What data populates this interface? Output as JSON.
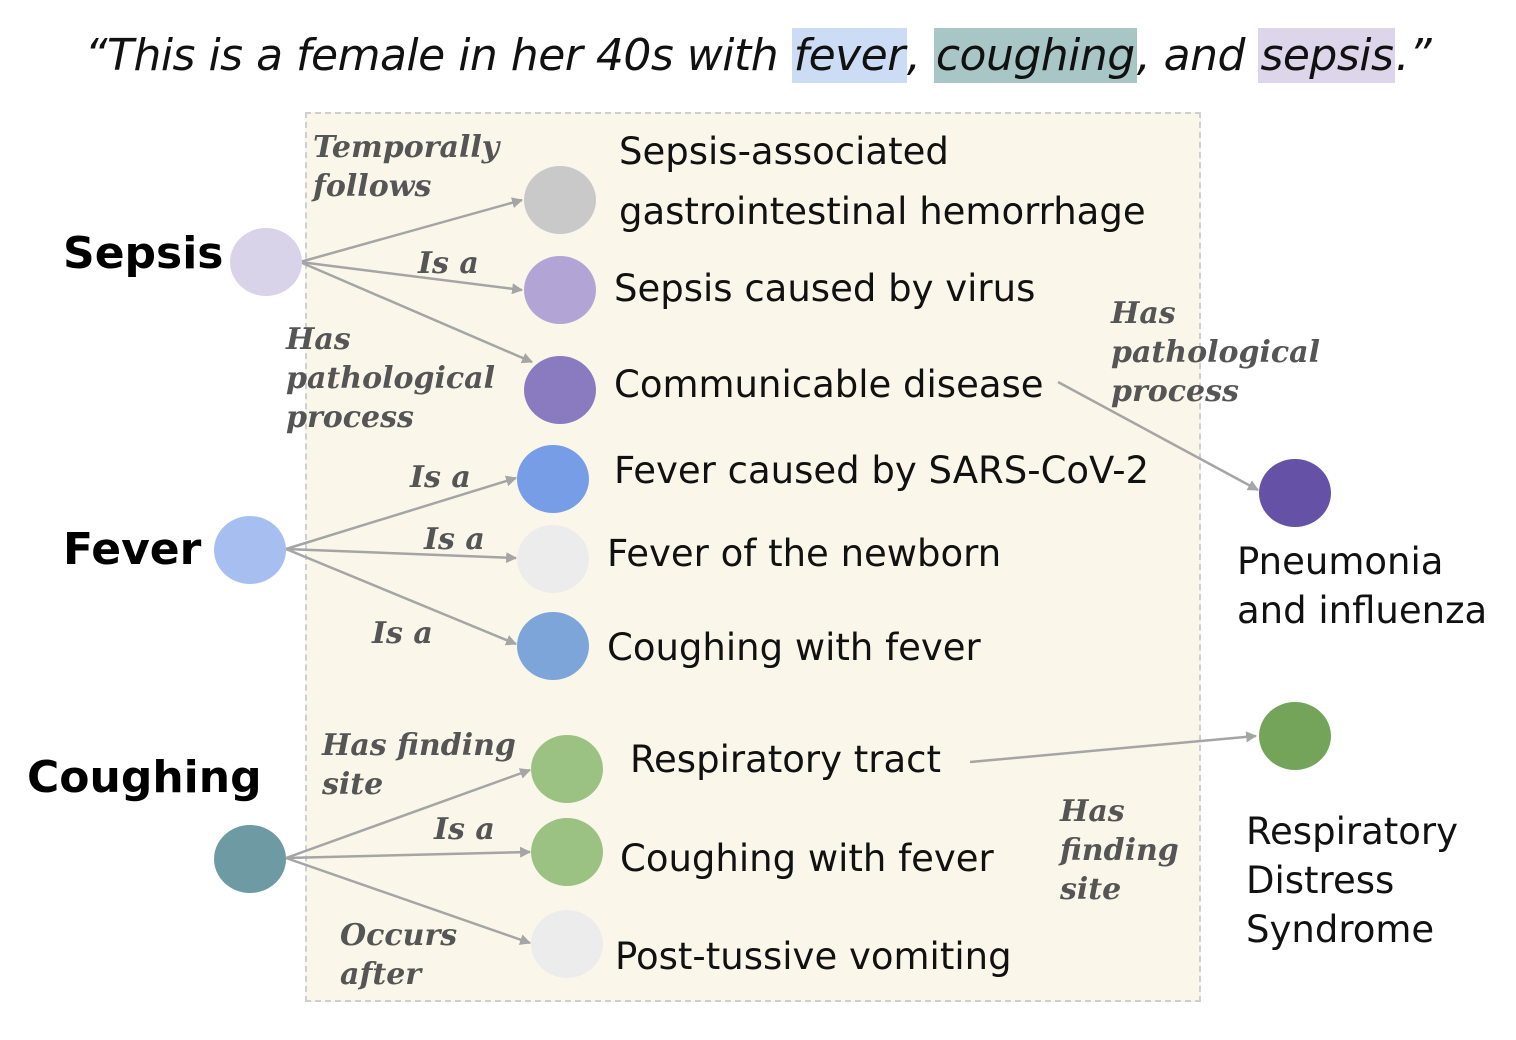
{
  "quote": {
    "open": "“This is a female in her 40s with ",
    "fever": "fever",
    "sep1": ", ",
    "coughing": "coughing",
    "sep2": ", and ",
    "sepsis": "sepsis",
    "close": ".”"
  },
  "roots": {
    "sepsis": "Sepsis",
    "fever": "Fever",
    "coughing": "Coughing"
  },
  "nodes": {
    "sepsis_gi_hemorrhage": "Sepsis-associated gastrointestinal hemorrhage",
    "sepsis_virus": "Sepsis caused by virus",
    "communicable_disease": "Communicable disease",
    "fever_sars": "Fever caused by SARS-CoV-2",
    "fever_newborn": "Fever of the newborn",
    "coughing_fever_1": "Coughing with fever",
    "respiratory_tract": "Respiratory tract",
    "coughing_fever_2": "Coughing with fever",
    "post_tussive": "Post-tussive vomiting",
    "pneumonia": "Pneumonia and influenza",
    "ards": "Respiratory Distress Syndrome"
  },
  "relations": {
    "temporally_follows": "Temporally follows",
    "sepsis_is_a": "Is a",
    "has_pathological_process_1": "Has pathological process",
    "has_pathological_process_2": "Has pathological process",
    "fever_is_a_1": "Is a",
    "fever_is_a_2": "Is a",
    "fever_is_a_3": "Is a",
    "has_finding_site_1": "Has finding site",
    "coughing_is_a": "Is a",
    "occurs_after": "Occurs after",
    "has_finding_site_2": "Has finding site"
  },
  "colors": {
    "sepsis_root": "#d9d3ea",
    "fever_root": "#a7bff0",
    "coughing_root": "#6e9ba3",
    "gray_node": "#c9c9c9",
    "light_gray_node": "#ececec",
    "lavender_node": "#b3a4d6",
    "purple_node": "#8a7abf",
    "dark_purple_node": "#6551a6",
    "blue_node": "#779de6",
    "steel_blue_node": "#7ea5d9",
    "green_node": "#9cc283",
    "dark_green_node": "#74a45a",
    "edge": "#a5a5a5",
    "panel_bg": "#faf7ea"
  }
}
